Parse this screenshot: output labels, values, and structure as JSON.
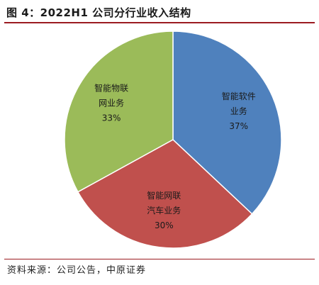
{
  "title": "图 4：2022H1 公司分行业收入结构",
  "source": "资料来源：公司公告，中原证券",
  "chart_data": {
    "type": "pie",
    "title": "图 4：2022H1 公司分行业收入结构",
    "slices": [
      {
        "label_lines": [
          "智能软件",
          "业务"
        ],
        "value": 37,
        "value_text": "37%",
        "color": "#4f81bd"
      },
      {
        "label_lines": [
          "智能网联",
          "汽车业务"
        ],
        "value": 30,
        "value_text": "30%",
        "color": "#c0504d"
      },
      {
        "label_lines": [
          "智能物联",
          "网业务"
        ],
        "value": 33,
        "value_text": "33%",
        "color": "#9bbb59"
      }
    ],
    "start_angle_deg": 0,
    "direction": "clockwise",
    "legend": "none"
  }
}
